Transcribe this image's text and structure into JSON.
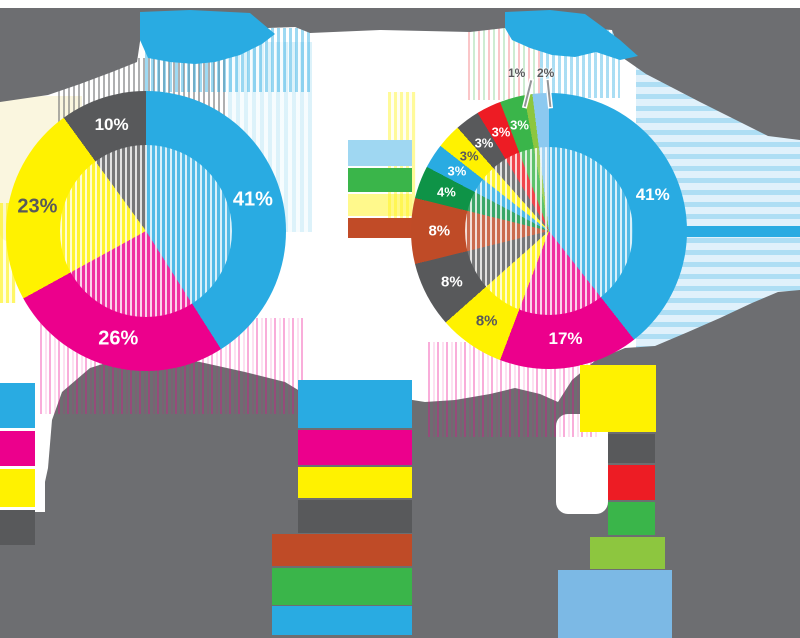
{
  "palette": {
    "blue": "#29abe2",
    "magenta": "#ec008c",
    "yellow": "#fff200",
    "dark_gray": "#58595b",
    "smear_gray": "#6d6e71",
    "brown": "#bf4b27",
    "dark_green": "#0e9347",
    "green": "#3ab54a",
    "light_green": "#8dc63f",
    "red": "#ed1c24",
    "sky_blue": "#8cc9f0",
    "legend_sky": "#7cb9e5"
  },
  "chart_data": [
    {
      "type": "pie",
      "donut": true,
      "title": "",
      "legend_position": "bottom-left",
      "segments": [
        {
          "value": 41,
          "label": "41%",
          "color": "#29abe2",
          "text": "#ffffff"
        },
        {
          "value": 26,
          "label": "26%",
          "color": "#ec008c",
          "text": "#ffffff"
        },
        {
          "value": 23,
          "label": "23%",
          "color": "#fff200",
          "text": "#58595b"
        },
        {
          "value": 10,
          "label": "10%",
          "color": "#58595b",
          "text": "#ffffff"
        }
      ]
    },
    {
      "type": "pie",
      "donut": true,
      "title": "",
      "legend_position": "bottom",
      "segments": [
        {
          "value": 41,
          "label": "41%",
          "color": "#29abe2",
          "text": "#ffffff"
        },
        {
          "value": 17,
          "label": "17%",
          "color": "#ec008c",
          "text": "#ffffff"
        },
        {
          "value": 8,
          "label": "8%",
          "color": "#fff200",
          "text": "#58595b"
        },
        {
          "value": 8,
          "label": "8%",
          "color": "#58595b",
          "text": "#ffffff"
        },
        {
          "value": 8,
          "label": "8%",
          "color": "#bf4b27",
          "text": "#ffffff"
        },
        {
          "value": 4,
          "label": "4%",
          "color": "#0e9347",
          "text": "#ffffff"
        },
        {
          "value": 3,
          "label": "3%",
          "color": "#29abe2",
          "text": "#ffffff"
        },
        {
          "value": 3,
          "label": "3%",
          "color": "#fff200",
          "text": "#58595b"
        },
        {
          "value": 3,
          "label": "3%",
          "color": "#58595b",
          "text": "#ffffff"
        },
        {
          "value": 3,
          "label": "3%",
          "color": "#ed1c24",
          "text": "#ffffff"
        },
        {
          "value": 3,
          "label": "3%",
          "color": "#3ab54a",
          "text": "#ffffff"
        },
        {
          "value": 1,
          "label": "1%",
          "color": "#8dc63f",
          "text": "#58595b",
          "callout": true
        },
        {
          "value": 2,
          "label": "2%",
          "color": "#8cc9f0",
          "text": "#58595b",
          "callout": true
        }
      ]
    }
  ],
  "legends": {
    "left_chart": [
      "#29abe2",
      "#ec008c",
      "#fff200",
      "#58595b"
    ],
    "right_chart_col1": [
      "#29abe2",
      "#ec008c",
      "#fff200",
      "#58595b",
      "#bf4b27",
      "#3ab54a",
      "#29abe2"
    ],
    "right_chart_col2": [
      "#fff200",
      "#58595b",
      "#ed1c24",
      "#3ab54a",
      "#8dc63f",
      "#7cb9e5"
    ]
  }
}
